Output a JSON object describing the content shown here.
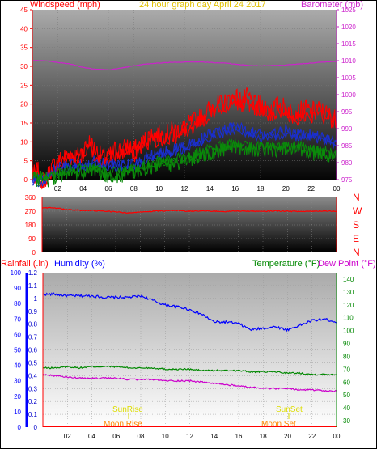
{
  "colors": {
    "windspeed": "#ff0000",
    "wind_avg": "#1a2fcf",
    "wind_lull": "#0a8a0a",
    "barometer": "#cc22cc",
    "direction": "#ff0000",
    "rainfall": "#ff0000",
    "humidity": "#0000ff",
    "temperature": "#008800",
    "dew_point": "#cc00cc",
    "title": "#e0c000",
    "sun": "#dddd00",
    "moon": "#ff8800",
    "frame": "#000000",
    "axis_right_low": "#008800"
  },
  "header": {
    "left_label": "Windspeed (mph)",
    "title": "24 hour graph day   April 24 2017",
    "right_label": "Barometer (mb)"
  },
  "lower_header": {
    "rainfall_label": "Rainfall (.in)",
    "humidity_label": "Humidity (%)",
    "temperature_label": "Temperature (°F)",
    "dewpoint_label": "Dew Point (°F)"
  },
  "direction_labels": [
    "N",
    "W",
    "S",
    "E",
    "N"
  ],
  "annotations": {
    "sunrise": "SunRise",
    "sunset": "SunSet",
    "moonrise": "Moon Rise",
    "moonset": "Moon Set"
  },
  "chart_data": [
    {
      "type": "line",
      "name": "wind-barometer",
      "x_ticks": [
        "02",
        "04",
        "06",
        "08",
        "10",
        "12",
        "14",
        "16",
        "18",
        "20",
        "22",
        "00"
      ],
      "y_left_ticks": [
        "0",
        "5",
        "10",
        "15",
        "20",
        "25",
        "30",
        "35",
        "40",
        "45"
      ],
      "y_left_range": [
        0,
        45
      ],
      "y_right_ticks": [
        "975",
        "980",
        "985",
        "990",
        "995",
        "1000",
        "1005",
        "1010",
        "1015",
        "1020",
        "1025"
      ],
      "y_right_range": [
        975,
        1025
      ],
      "series": [
        {
          "key": "gust",
          "x": [
            0,
            0.2,
            0.4,
            0.6,
            1,
            1.5,
            2,
            2.5,
            3,
            3.5,
            4,
            4.5,
            5,
            5.5,
            6,
            6.5,
            7,
            7.5,
            8,
            8.5,
            9,
            9.5,
            10,
            10.5,
            11,
            11.5,
            12,
            12.5,
            13,
            13.5,
            14,
            14.5,
            15,
            15.5,
            16,
            16.5,
            17,
            17.5,
            18,
            18.5,
            19,
            19.5,
            20,
            20.5,
            21,
            21.5,
            22,
            22.5,
            23,
            23.5,
            24
          ],
          "values": [
            3,
            1,
            3,
            0,
            0,
            3,
            5,
            6,
            7,
            6,
            8,
            10,
            8,
            6,
            6,
            8,
            8,
            9,
            8,
            9,
            11,
            12,
            12,
            12,
            13,
            13,
            14,
            15,
            16,
            17,
            19,
            20,
            20,
            21,
            22,
            21,
            22,
            20,
            20,
            19,
            19,
            20,
            19,
            18,
            18,
            19,
            18,
            19,
            18,
            17,
            16
          ]
        },
        {
          "key": "average",
          "x": [
            0,
            1,
            1.5,
            2,
            3,
            4,
            5,
            6,
            7,
            8,
            9,
            10,
            11,
            12,
            13,
            14,
            15,
            16,
            17,
            18,
            19,
            20,
            21,
            22,
            23,
            24
          ],
          "values": [
            0,
            0,
            2,
            3,
            4,
            4,
            5,
            4,
            4,
            4,
            6,
            7,
            8,
            9,
            10,
            12,
            13,
            14,
            13,
            12,
            12,
            13,
            12,
            12,
            11,
            10
          ]
        },
        {
          "key": "lull",
          "x": [
            0,
            1,
            1.5,
            2,
            3,
            4,
            5,
            6,
            7,
            8,
            9,
            10,
            11,
            12,
            13,
            14,
            15,
            16,
            17,
            18,
            19,
            20,
            21,
            22,
            23,
            24
          ],
          "values": [
            0,
            0,
            0,
            1,
            2,
            2,
            2,
            1,
            1,
            2,
            3,
            4,
            4,
            5,
            6,
            7,
            8,
            9,
            8,
            8,
            8,
            8,
            8,
            7,
            7,
            6
          ]
        },
        {
          "key": "barometer",
          "x": [
            0,
            1,
            2,
            3,
            4,
            5,
            6,
            7,
            8,
            9,
            10,
            11,
            12,
            13,
            14,
            15,
            16,
            17,
            18,
            19,
            20,
            21,
            22,
            23,
            24
          ],
          "values": [
            1010,
            1010,
            1009.5,
            1009,
            1008,
            1007.5,
            1007.3,
            1007.8,
            1008.5,
            1009,
            1009.3,
            1009.5,
            1009.6,
            1009.6,
            1009.5,
            1009.3,
            1009,
            1008.6,
            1008.5,
            1008.6,
            1008.7,
            1009,
            1009.3,
            1009.6,
            1009.8
          ]
        }
      ]
    },
    {
      "type": "line",
      "name": "wind-direction",
      "x_ticks": [
        "02",
        "04",
        "06",
        "08",
        "10",
        "12",
        "14",
        "16",
        "18",
        "20",
        "22",
        "00"
      ],
      "y_ticks": [
        "0",
        "90",
        "180",
        "270",
        "360"
      ],
      "y_range": [
        0,
        360
      ],
      "series": [
        {
          "key": "direction",
          "x": [
            0,
            1,
            2,
            3,
            4,
            5,
            6,
            7,
            8,
            9,
            10,
            11,
            12,
            13,
            14,
            15,
            16,
            17,
            18,
            19,
            20,
            21,
            22,
            23,
            24
          ],
          "values": [
            292,
            292,
            280,
            276,
            274,
            270,
            266,
            258,
            264,
            270,
            272,
            274,
            270,
            272,
            270,
            268,
            272,
            270,
            268,
            272,
            270,
            268,
            270,
            272,
            270
          ]
        }
      ]
    },
    {
      "type": "line",
      "name": "humidity-temperature",
      "x_ticks": [
        "02",
        "04",
        "06",
        "08",
        "10",
        "12",
        "14",
        "16",
        "18",
        "20",
        "22",
        "00"
      ],
      "y_left_rain_ticks": [
        "0",
        "0.1",
        "0.2",
        "0.3",
        "0.4",
        "0.5",
        "0.6",
        "0.7",
        "0.8",
        "0.9",
        "1",
        "1.1",
        "1.2"
      ],
      "y_left_rain_range": [
        0,
        1.2
      ],
      "y_left_humidity_ticks": [
        "0",
        "10",
        "20",
        "30",
        "40",
        "50",
        "60",
        "70",
        "80",
        "90",
        "100"
      ],
      "y_left_humidity_range": [
        0,
        100
      ],
      "y_right_ticks": [
        "30",
        "40",
        "50",
        "60",
        "70",
        "80",
        "90",
        "100",
        "110",
        "120",
        "130",
        "140"
      ],
      "y_right_range": [
        25,
        145
      ],
      "series": [
        {
          "key": "rainfall",
          "x": [
            0,
            24
          ],
          "values": [
            0,
            0
          ]
        },
        {
          "key": "humidity",
          "x": [
            0,
            1,
            2,
            3,
            4,
            5,
            6,
            7,
            8,
            9,
            10,
            11,
            12,
            13,
            14,
            15,
            16,
            17,
            18,
            19,
            20,
            21,
            22,
            23,
            24
          ],
          "values": [
            86,
            86,
            85,
            85,
            85,
            84,
            84,
            84,
            85,
            82,
            79,
            78,
            76,
            73,
            68,
            68,
            67,
            63,
            64,
            65,
            63,
            66,
            69,
            70,
            68
          ]
        },
        {
          "key": "temperature",
          "x": [
            0,
            1,
            2,
            3,
            4,
            5,
            6,
            7,
            8,
            9,
            10,
            11,
            12,
            13,
            14,
            15,
            16,
            17,
            18,
            19,
            20,
            21,
            22,
            23,
            24
          ],
          "values": [
            71,
            71,
            72,
            71,
            72,
            72,
            72,
            71,
            71,
            71,
            70,
            70,
            70,
            69,
            69,
            69,
            69,
            68,
            68,
            68,
            67,
            67,
            66,
            66,
            66
          ]
        },
        {
          "key": "dew_point",
          "x": [
            0,
            1,
            2,
            3,
            4,
            5,
            6,
            7,
            8,
            9,
            10,
            11,
            12,
            13,
            14,
            15,
            16,
            17,
            18,
            19,
            20,
            21,
            22,
            23,
            24
          ],
          "values": [
            66,
            65,
            64,
            63,
            63,
            63,
            63,
            62,
            62,
            62,
            61,
            61,
            61,
            60,
            59,
            58,
            57,
            56,
            55,
            55,
            55,
            54,
            54,
            53,
            53
          ]
        }
      ]
    }
  ]
}
